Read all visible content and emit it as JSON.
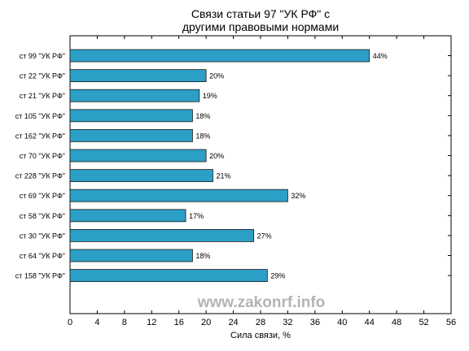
{
  "chart_data": {
    "type": "bar",
    "orientation": "horizontal",
    "title_lines": [
      "Связи статьи 97 \"УК РФ\" с",
      "другими правовыми нормами"
    ],
    "xlabel": "Сила связи, %",
    "ylabel": "",
    "xlim": [
      0,
      56
    ],
    "xticks": [
      0,
      4,
      8,
      12,
      16,
      20,
      24,
      28,
      32,
      36,
      40,
      44,
      48,
      52,
      56
    ],
    "categories": [
      "ст 99 \"УК РФ\"",
      "ст 22 \"УК РФ\"",
      "ст 21 \"УК РФ\"",
      "ст 105 \"УК РФ\"",
      "ст 162 \"УК РФ\"",
      "ст 70 \"УК РФ\"",
      "ст 228 \"УК РФ\"",
      "ст 69 \"УК РФ\"",
      "ст 58 \"УК РФ\"",
      "ст 30 \"УК РФ\"",
      "ст 64 \"УК РФ\"",
      "ст 158 \"УК РФ\""
    ],
    "values": [
      44,
      20,
      19,
      18,
      18,
      20,
      21,
      32,
      17,
      27,
      18,
      29
    ],
    "value_labels": [
      "44%",
      "20%",
      "19%",
      "18%",
      "18%",
      "20%",
      "21%",
      "32%",
      "17%",
      "27%",
      "18%",
      "29%"
    ],
    "bar_color": "#2b9fc6",
    "edge_color": "#1a1a1a",
    "grid": false
  },
  "watermark": "www.zakonrf.info"
}
